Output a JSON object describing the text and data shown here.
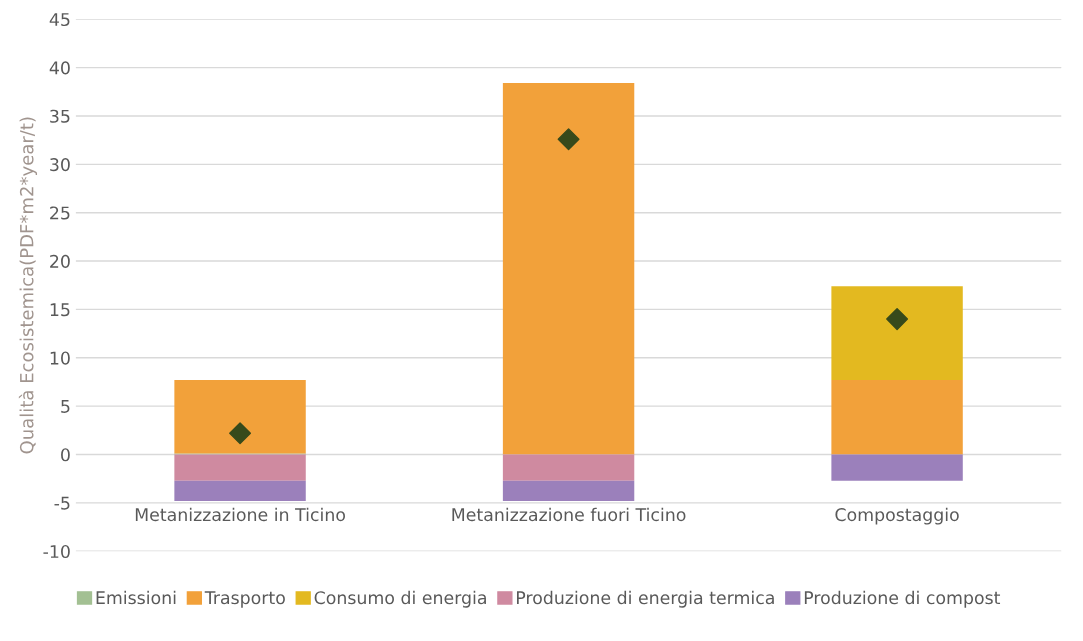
{
  "chart_data": {
    "type": "bar",
    "stacked": true,
    "ylabel": "Qualità Ecosistemica(PDF*m2*year/t)",
    "categories": [
      "Metanizzazione in Ticino",
      "Metanizzazione fuori Ticino",
      "Compostaggio"
    ],
    "series": [
      {
        "name": "Emissioni",
        "color": "#a3c093",
        "values": [
          0.1,
          0,
          0
        ]
      },
      {
        "name": "Trasporto",
        "color": "#f2a13a",
        "values": [
          7.6,
          38.4,
          7.7
        ]
      },
      {
        "name": "Consumo di energia",
        "color": "#e3b920",
        "values": [
          0,
          0,
          9.7
        ]
      },
      {
        "name": "Produzione di energia termica",
        "color": "#cf8aa0",
        "values": [
          -2.7,
          -2.7,
          0
        ]
      },
      {
        "name": "Produzione di compost",
        "color": "#9b80bb",
        "values": [
          -2.1,
          -2.1,
          -2.7
        ]
      },
      {
        "type": "scatter",
        "marker": "diamond",
        "color": "#374a1b",
        "values": [
          2.2,
          32.6,
          14.0
        ]
      }
    ],
    "ylim": [
      -10,
      45
    ],
    "yticks": [
      -10,
      -5,
      0,
      5,
      10,
      15,
      20,
      25,
      30,
      35,
      40,
      45
    ],
    "grid": "y",
    "legend": "bottom"
  }
}
